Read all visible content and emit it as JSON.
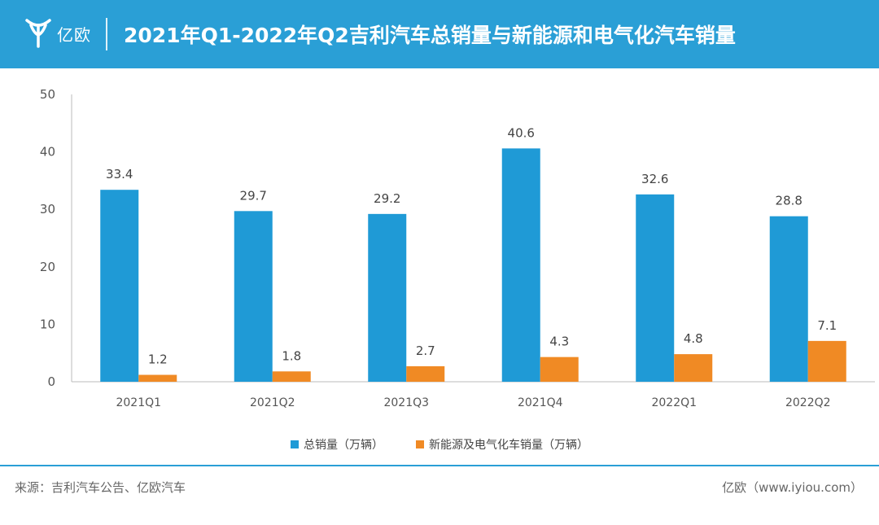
{
  "header": {
    "logo_text": "亿欧",
    "title": "2021年Q1-2022年Q2吉利汽车总销量与新能源和电气化汽车销量",
    "color": "#2a9fd6"
  },
  "chart_data": {
    "type": "bar",
    "categories": [
      "2021Q1",
      "2021Q2",
      "2021Q3",
      "2021Q4",
      "2022Q1",
      "2022Q2"
    ],
    "series": [
      {
        "name": "总销量（万辆）",
        "values": [
          33.4,
          29.7,
          29.2,
          40.6,
          32.6,
          28.8
        ],
        "color": "#1f9ad6"
      },
      {
        "name": "新能源及电气化车销量（万辆）",
        "values": [
          1.2,
          1.8,
          2.7,
          4.3,
          4.8,
          7.1
        ],
        "color": "#f08a24"
      }
    ],
    "ylim": [
      0,
      50
    ],
    "yticks": [
      0,
      10,
      20,
      30,
      40,
      50
    ],
    "grid": false,
    "legend": "bottom-center"
  },
  "footer": {
    "source": "来源：吉利汽车公告、亿欧汽车",
    "credit": "亿欧（www.iyiou.com）"
  }
}
